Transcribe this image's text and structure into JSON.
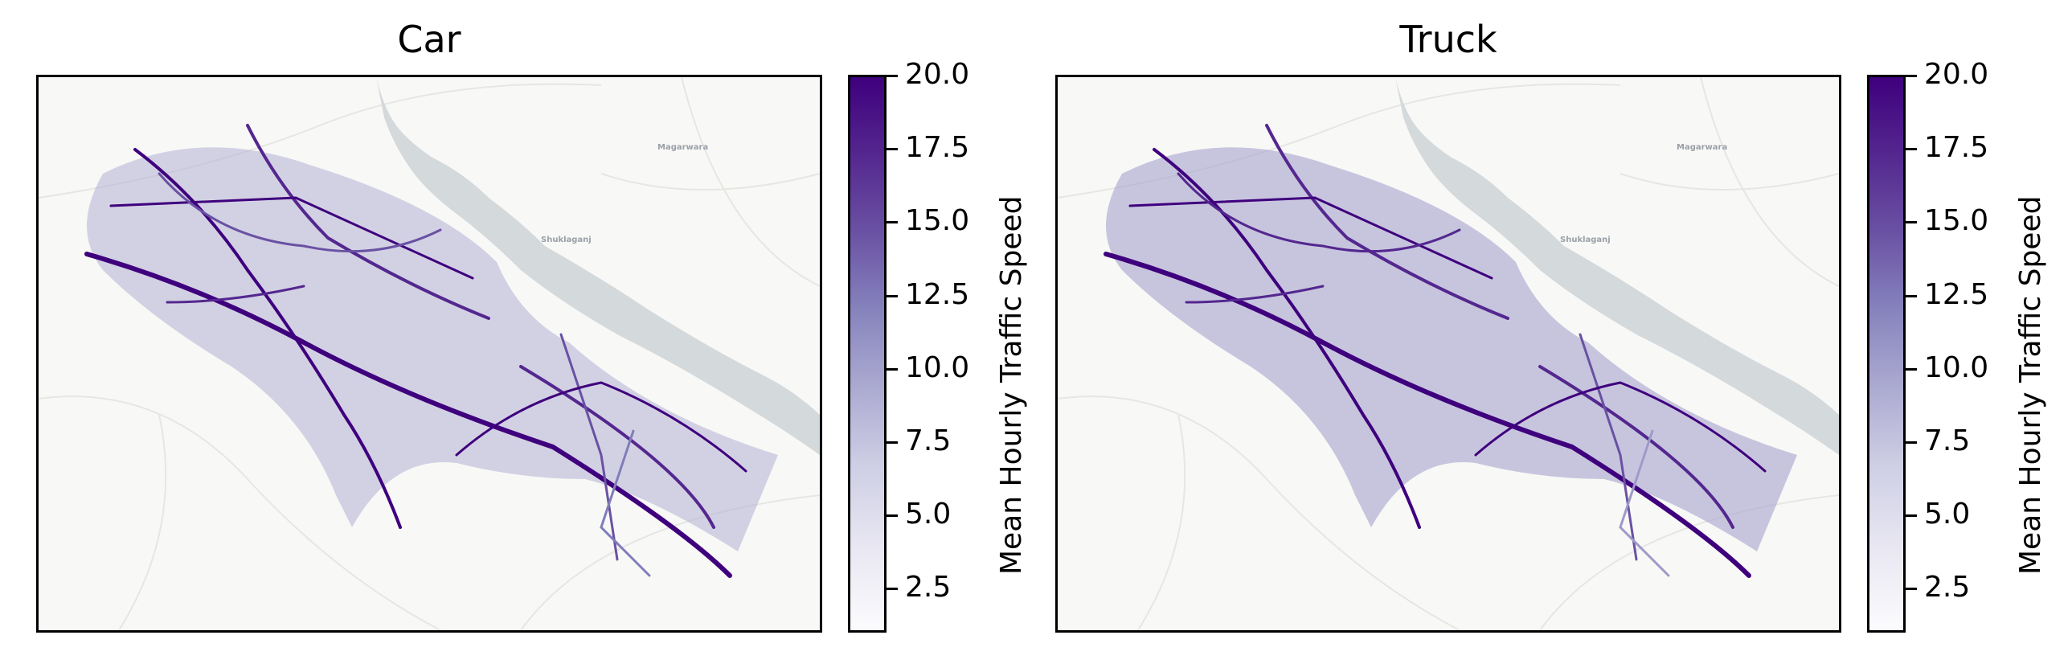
{
  "panels": [
    {
      "title": "Car",
      "place_labels": [
        "Magarwara",
        "Shuklaganj"
      ],
      "colorbar": {
        "label": "Mean Hourly Traffic Speed",
        "ticks": [
          "20.0",
          "17.5",
          "15.0",
          "12.5",
          "10.0",
          "7.5",
          "5.0",
          "2.5"
        ],
        "range": [
          1,
          20
        ],
        "colormap": "Purples"
      }
    },
    {
      "title": "Truck",
      "place_labels": [
        "Magarwara",
        "Shuklaganj"
      ],
      "colorbar": {
        "label": "Mean Hourly Traffic Speed",
        "ticks": [
          "20.0",
          "17.5",
          "15.0",
          "12.5",
          "10.0",
          "7.5",
          "5.0",
          "2.5"
        ],
        "range": [
          1,
          20
        ],
        "colormap": "Purples"
      }
    }
  ],
  "colors": {
    "dark_purple": "#3f007d",
    "mid_purple": "#6a51a3",
    "light_purple": "#bcbddc",
    "river": "#d4d9dc",
    "basemap": "#f8f8f6"
  }
}
